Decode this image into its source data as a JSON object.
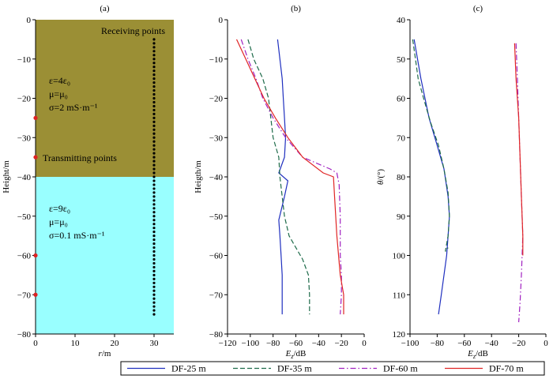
{
  "colors": {
    "upper_layer": "#9b8f35",
    "lower_layer": "#99ffff",
    "dots": "#000000",
    "tx_points": "#dd2222",
    "df25": "#1f2fbf",
    "df35": "#1e6b4a",
    "df60": "#a020c0",
    "df70": "#e02424"
  },
  "chart_data": [
    {
      "type": "scatter",
      "panel_label": "(a)",
      "xlabel": "r/m",
      "ylabel": "Height/m",
      "xlim": [
        0,
        35
      ],
      "ylim": [
        -80,
        0
      ],
      "xticks": [
        0,
        10,
        20,
        30
      ],
      "yticks": [
        0,
        -10,
        -20,
        -30,
        -40,
        -50,
        -60,
        -70,
        -80
      ],
      "layers": [
        {
          "top": 0,
          "bottom": -40,
          "color": "#9b8f35",
          "lines": [
            "ε=4ε₀",
            "μ=μ₀",
            "σ=2 mS·m⁻¹"
          ]
        },
        {
          "top": -40,
          "bottom": -80,
          "color": "#99ffff",
          "lines": [
            "ε=9ε₀",
            "μ=μ₀",
            "σ=0.1 mS·m⁻¹"
          ]
        }
      ],
      "receiving_label": "Receiving points",
      "transmitting_label": "Transmitting points",
      "receiving_points": {
        "x": 30,
        "y_start": -5,
        "y_end": -75,
        "step": 1
      },
      "transmitting_points": {
        "x": 0,
        "y": [
          -25,
          -35,
          -60,
          -70
        ]
      }
    },
    {
      "type": "line",
      "panel_label": "(b)",
      "xlabel": "Ez/dB",
      "ylabel": "Heigth/m",
      "xlim": [
        -120,
        0
      ],
      "ylim": [
        -80,
        0
      ],
      "xticks": [
        -120,
        -100,
        -80,
        -60,
        -40,
        -20,
        0
      ],
      "yticks": [
        0,
        -10,
        -20,
        -30,
        -40,
        -50,
        -60,
        -70,
        -80
      ],
      "series": [
        {
          "name": "DF-25 m",
          "style": "solid",
          "color": "#1f2fbf",
          "points": [
            [
              -76,
              -5
            ],
            [
              -74,
              -10
            ],
            [
              -72,
              -15
            ],
            [
              -71,
              -20
            ],
            [
              -70,
              -25
            ],
            [
              -69,
              -30
            ],
            [
              -70,
              -35
            ],
            [
              -75,
              -39
            ],
            [
              -67,
              -41
            ],
            [
              -70,
              -45
            ],
            [
              -75,
              -51
            ],
            [
              -74,
              -55
            ],
            [
              -73,
              -60
            ],
            [
              -72,
              -65
            ],
            [
              -72,
              -70
            ],
            [
              -72,
              -75
            ]
          ]
        },
        {
          "name": "DF-35 m",
          "style": "dashed",
          "color": "#1e6b4a",
          "points": [
            [
              -102,
              -5
            ],
            [
              -97,
              -10
            ],
            [
              -89,
              -15
            ],
            [
              -84,
              -20
            ],
            [
              -82,
              -25
            ],
            [
              -80,
              -30
            ],
            [
              -75,
              -35
            ],
            [
              -74,
              -40
            ],
            [
              -72,
              -45
            ],
            [
              -70,
              -50
            ],
            [
              -66,
              -55
            ],
            [
              -60,
              -58
            ],
            [
              -54,
              -61
            ],
            [
              -49,
              -65
            ],
            [
              -48,
              -70
            ],
            [
              -48,
              -75
            ]
          ]
        },
        {
          "name": "DF-60 m",
          "style": "dashdot",
          "color": "#a020c0",
          "points": [
            [
              -108,
              -5
            ],
            [
              -102,
              -10
            ],
            [
              -95,
              -15
            ],
            [
              -89,
              -20
            ],
            [
              -80,
              -25
            ],
            [
              -69,
              -30
            ],
            [
              -54,
              -35
            ],
            [
              -30,
              -38
            ],
            [
              -24,
              -39
            ],
            [
              -22,
              -42
            ],
            [
              -21,
              -50
            ],
            [
              -21,
              -60
            ],
            [
              -20,
              -65
            ],
            [
              -20,
              -70
            ],
            [
              -21,
              -75
            ]
          ]
        },
        {
          "name": "DF-70 m",
          "style": "solid",
          "color": "#e02424",
          "points": [
            [
              -112,
              -5
            ],
            [
              -104,
              -10
            ],
            [
              -96,
              -15
            ],
            [
              -88,
              -20
            ],
            [
              -78,
              -25
            ],
            [
              -67,
              -30
            ],
            [
              -54,
              -35
            ],
            [
              -36,
              -39
            ],
            [
              -27,
              -40
            ],
            [
              -26,
              -45
            ],
            [
              -24,
              -55
            ],
            [
              -21,
              -65
            ],
            [
              -18,
              -70
            ],
            [
              -18,
              -75
            ]
          ]
        }
      ]
    },
    {
      "type": "line",
      "panel_label": "(c)",
      "xlabel": "Ez/dB",
      "ylabel": "θ/(°)",
      "xlim": [
        -100,
        0
      ],
      "ylim": [
        120,
        40
      ],
      "xticks": [
        -100,
        -80,
        -60,
        -40,
        -20,
        0
      ],
      "yticks": [
        40,
        50,
        60,
        70,
        80,
        90,
        100,
        110,
        120
      ],
      "series": [
        {
          "name": "DF-25 m",
          "style": "solid",
          "color": "#1f2fbf",
          "points": [
            [
              -97,
              45
            ],
            [
              -92,
              55
            ],
            [
              -86,
              65
            ],
            [
              -80,
              72
            ],
            [
              -75,
              78
            ],
            [
              -72,
              85
            ],
            [
              -71,
              90
            ],
            [
              -72,
              95
            ],
            [
              -73,
              100
            ],
            [
              -75,
              105
            ],
            [
              -77,
              110
            ],
            [
              -79,
              115
            ]
          ]
        },
        {
          "name": "DF-35 m",
          "style": "dashed",
          "color": "#1e6b4a",
          "points": [
            [
              -98,
              45
            ],
            [
              -96,
              50
            ],
            [
              -94,
              55
            ],
            [
              -90,
              60
            ],
            [
              -85,
              66
            ],
            [
              -79,
              72
            ],
            [
              -75,
              78
            ],
            [
              -72,
              84
            ],
            [
              -71,
              90
            ],
            [
              -72,
              95
            ],
            [
              -74,
              99
            ],
            [
              -72,
              98
            ]
          ]
        },
        {
          "name": "DF-60 m",
          "style": "dashdot",
          "color": "#a020c0",
          "points": [
            [
              -22,
              46
            ],
            [
              -21,
              55
            ],
            [
              -20,
              65
            ],
            [
              -19,
              75
            ],
            [
              -18,
              85
            ],
            [
              -17,
              95
            ],
            [
              -18,
              105
            ],
            [
              -19,
              112
            ],
            [
              -20,
              117
            ]
          ]
        },
        {
          "name": "DF-70 m",
          "style": "solid",
          "color": "#e02424",
          "points": [
            [
              -23,
              46
            ],
            [
              -22,
              55
            ],
            [
              -20,
              65
            ],
            [
              -19,
              75
            ],
            [
              -18,
              85
            ],
            [
              -17,
              95
            ],
            [
              -17,
              100
            ]
          ]
        }
      ]
    }
  ],
  "legend": {
    "placement": "bottom",
    "items": [
      {
        "label": "DF-25 m",
        "style": "solid",
        "color": "#1f2fbf"
      },
      {
        "label": "DF-35 m",
        "style": "dashed",
        "color": "#1e6b4a"
      },
      {
        "label": "DF-60 m",
        "style": "dashdot",
        "color": "#a020c0"
      },
      {
        "label": "DF-70 m",
        "style": "solid",
        "color": "#e02424"
      }
    ]
  }
}
